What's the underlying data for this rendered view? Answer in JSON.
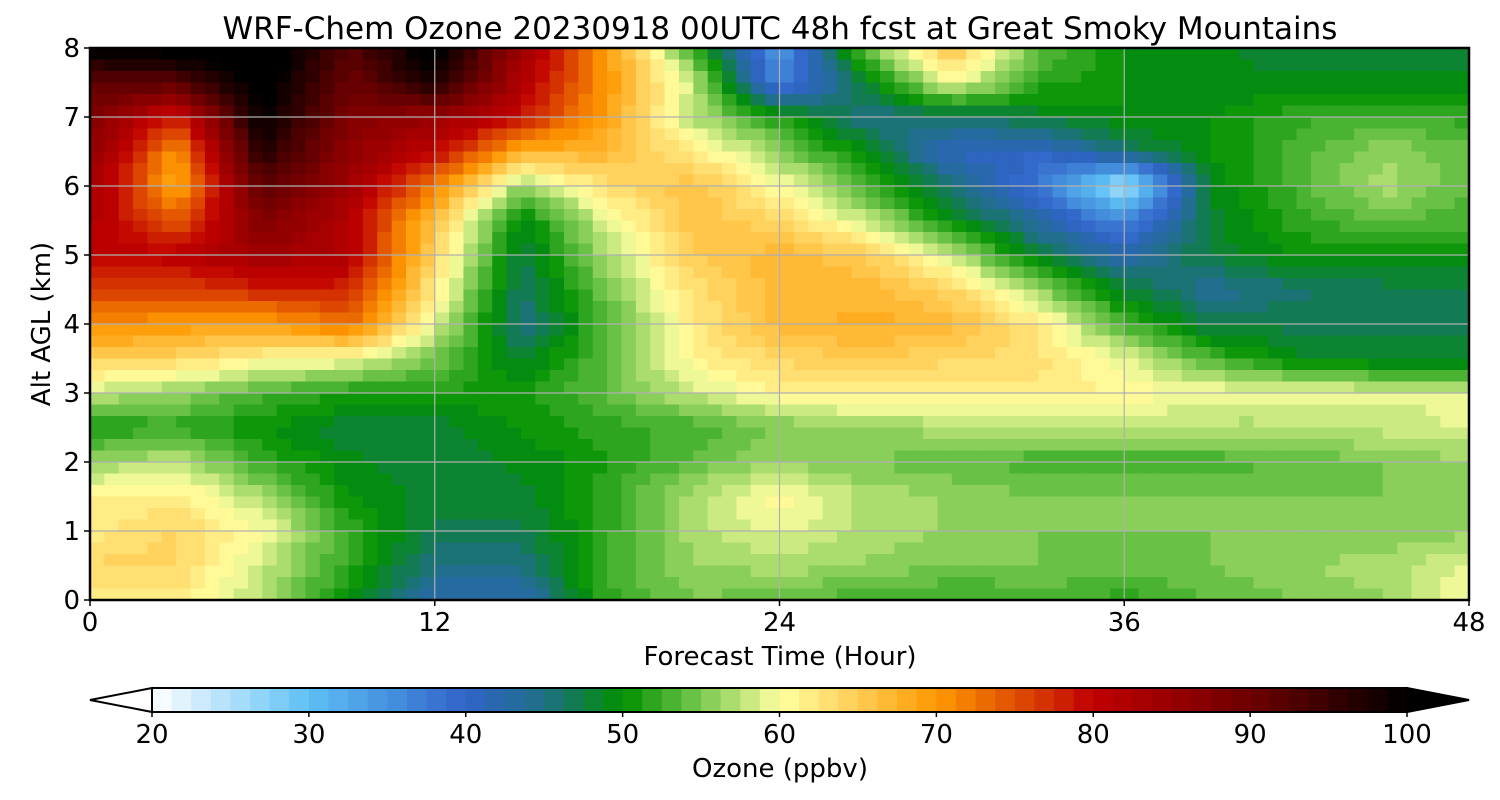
{
  "chart_data": {
    "type": "heatmap",
    "title": "WRF-Chem Ozone  20230918 00UTC 48h fcst at Great Smoky Mountains",
    "xlabel": "Forecast Time (Hour)",
    "ylabel": "Alt AGL (km)",
    "xlim": [
      0,
      48
    ],
    "ylim": [
      0,
      8
    ],
    "x_ticks": [
      "0",
      "12",
      "24",
      "36",
      "48"
    ],
    "y_ticks": [
      "0",
      "1",
      "2",
      "3",
      "4",
      "5",
      "6",
      "7",
      "8"
    ],
    "grid": true,
    "x": [
      0,
      3,
      6,
      9,
      12,
      15,
      18,
      21,
      24,
      27,
      30,
      33,
      36,
      39,
      42,
      45,
      48
    ],
    "y": [
      0,
      0.5,
      1,
      1.5,
      2,
      2.5,
      3,
      3.5,
      4,
      4.5,
      5,
      5.5,
      6,
      6.5,
      7,
      7.5,
      8
    ],
    "z": [
      [
        62,
        62,
        57,
        50,
        42,
        42,
        52,
        55,
        54,
        53,
        52,
        53,
        52,
        54,
        55,
        56,
        60
      ],
      [
        64,
        64,
        58,
        52,
        45,
        45,
        53,
        56,
        57,
        56,
        55,
        55,
        54,
        55,
        56,
        57,
        59
      ],
      [
        62,
        64,
        60,
        52,
        47,
        47,
        52,
        57,
        59,
        57,
        56,
        55,
        55,
        55,
        55,
        55,
        56
      ],
      [
        61,
        62,
        57,
        50,
        48,
        48,
        52,
        57,
        61,
        57,
        56,
        55,
        55,
        55,
        55,
        55,
        56
      ],
      [
        56,
        58,
        52,
        49,
        48,
        49,
        51,
        54,
        56,
        55,
        54,
        53,
        53,
        53,
        54,
        55,
        56
      ],
      [
        51,
        52,
        50,
        48,
        48,
        50,
        52,
        53,
        55,
        56,
        57,
        57,
        57,
        57,
        57,
        58,
        59
      ],
      [
        58,
        56,
        53,
        51,
        51,
        51,
        54,
        58,
        61,
        62,
        62,
        62,
        61,
        60,
        60,
        59,
        59
      ],
      [
        65,
        64,
        61,
        60,
        55,
        48,
        54,
        61,
        64,
        65,
        64,
        63,
        59,
        53,
        49,
        48,
        48
      ],
      [
        71,
        70,
        69,
        73,
        59,
        45,
        53,
        62,
        67,
        68,
        67,
        62,
        53,
        47,
        47,
        47,
        47
      ],
      [
        76,
        76,
        78,
        78,
        62,
        46,
        55,
        63,
        67,
        67,
        64,
        56,
        48,
        44,
        46,
        47,
        47
      ],
      [
        80,
        81,
        84,
        82,
        64,
        47,
        57,
        65,
        67,
        65,
        58,
        48,
        42,
        48,
        50,
        50,
        50
      ],
      [
        82,
        74,
        88,
        82,
        66,
        49,
        59,
        66,
        64,
        58,
        50,
        43,
        36,
        48,
        52,
        54,
        53
      ],
      [
        84,
        68,
        92,
        84,
        72,
        56,
        63,
        66,
        60,
        53,
        45,
        38,
        24,
        49,
        53,
        57,
        54
      ],
      [
        86,
        70,
        97,
        86,
        80,
        68,
        67,
        62,
        56,
        49,
        41,
        40,
        46,
        50,
        53,
        56,
        54
      ],
      [
        88,
        78,
        100,
        88,
        85,
        79,
        69,
        57,
        51,
        45,
        46,
        48,
        50,
        50,
        52,
        53,
        52
      ],
      [
        92,
        92,
        102,
        90,
        98,
        82,
        70,
        58,
        36,
        48,
        60,
        52,
        50,
        49,
        49,
        49,
        49
      ],
      [
        100,
        102,
        104,
        92,
        102,
        84,
        70,
        52,
        34,
        55,
        66,
        54,
        50,
        49,
        48,
        48,
        48
      ]
    ],
    "colorbar": {
      "label": "Ozone  (ppbv)",
      "min": 20,
      "max": 100,
      "ticks": [
        "20",
        "30",
        "40",
        "50",
        "60",
        "70",
        "80",
        "90",
        "100"
      ],
      "extend": "both",
      "levels_per_10": 8,
      "stops": [
        {
          "v": 20,
          "c": "#ffffff"
        },
        {
          "v": 30,
          "c": "#5ec0f5"
        },
        {
          "v": 40,
          "c": "#2f63c8"
        },
        {
          "v": 45,
          "c": "#1f6f86"
        },
        {
          "v": 50,
          "c": "#009000"
        },
        {
          "v": 55,
          "c": "#78c850"
        },
        {
          "v": 60,
          "c": "#ffffa0"
        },
        {
          "v": 65,
          "c": "#ffcc55"
        },
        {
          "v": 70,
          "c": "#ff9900"
        },
        {
          "v": 75,
          "c": "#e05000"
        },
        {
          "v": 80,
          "c": "#c00000"
        },
        {
          "v": 90,
          "c": "#6e0000"
        },
        {
          "v": 100,
          "c": "#000000"
        }
      ]
    }
  }
}
